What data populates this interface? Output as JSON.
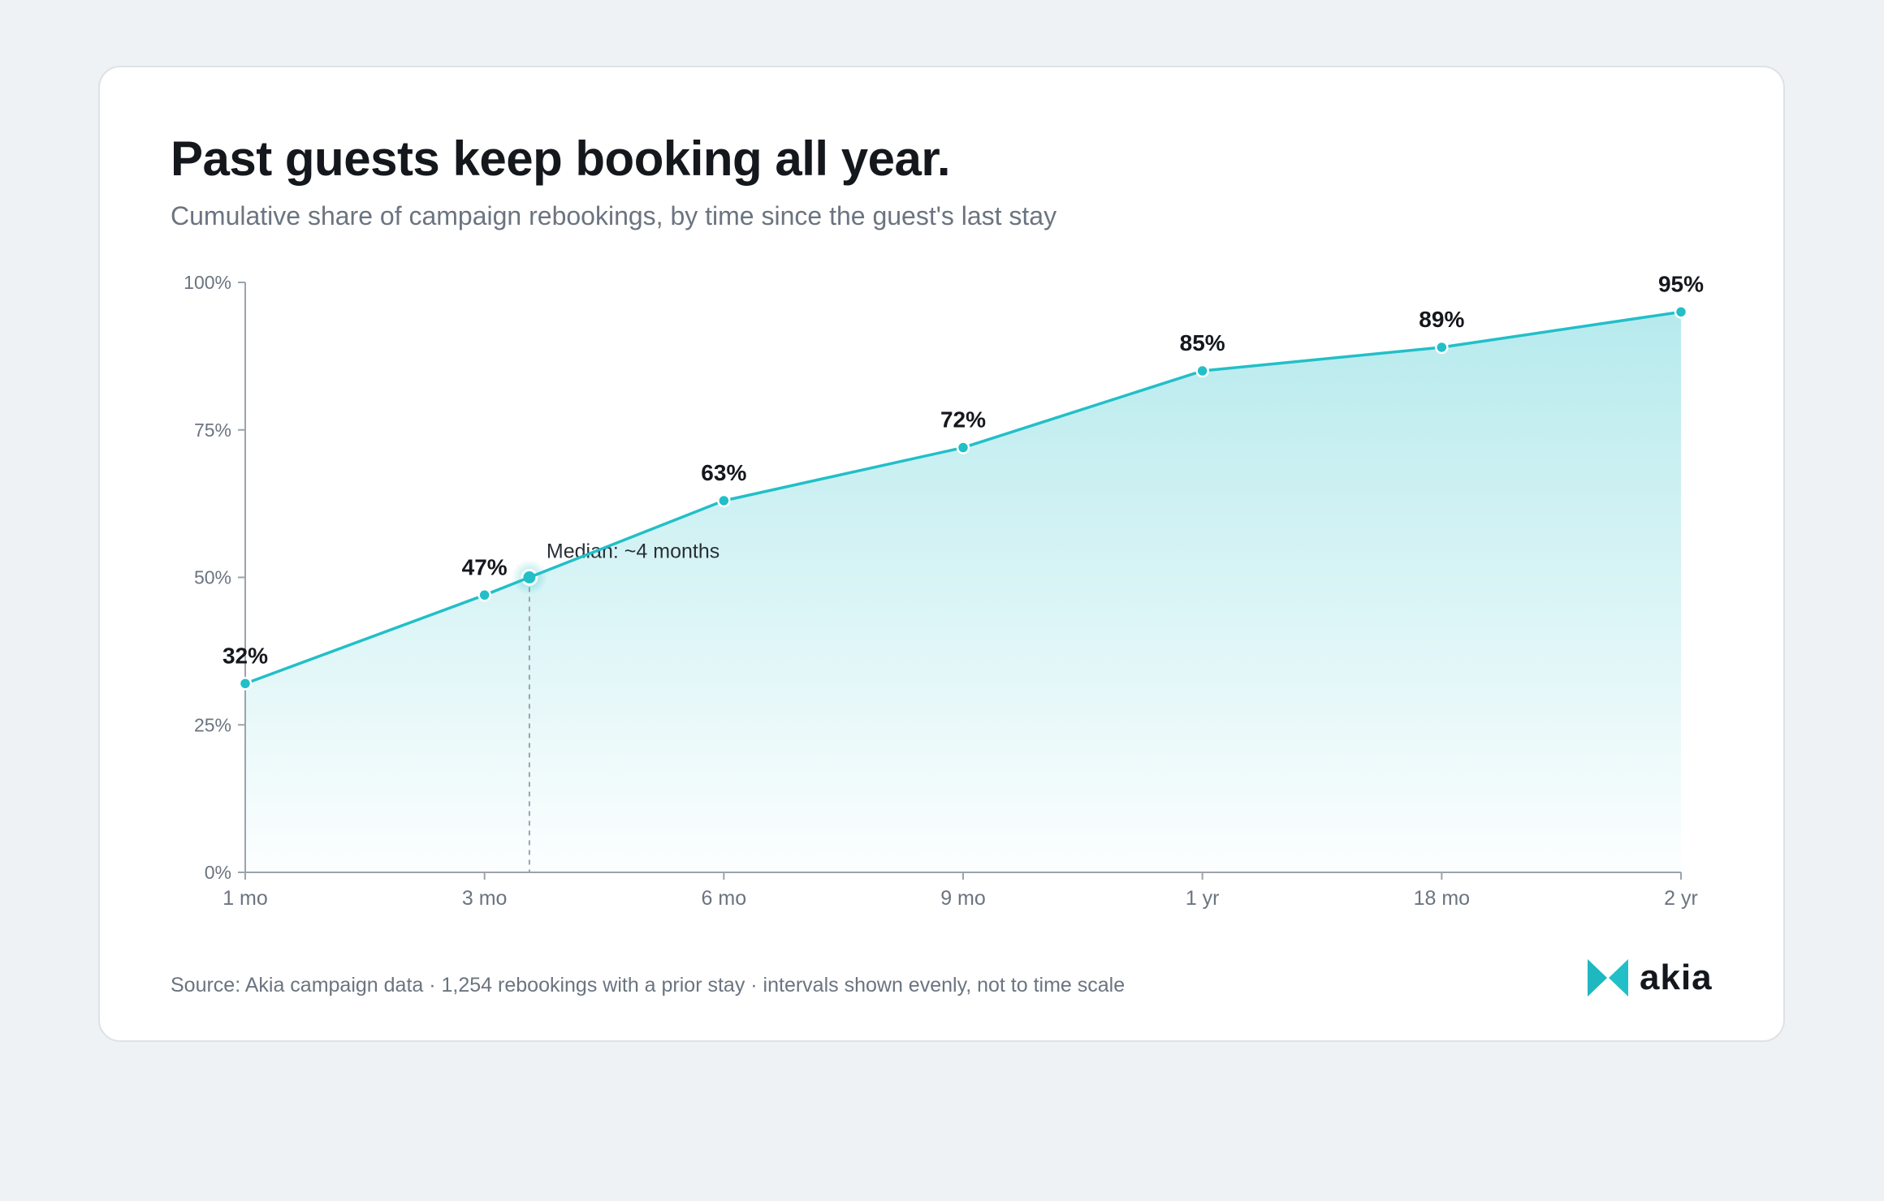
{
  "title": "Past guests keep booking all year.",
  "subtitle": "Cumulative share of campaign rebookings, by time since the guest's last stay",
  "source": "Source: Akia campaign data · 1,254 rebookings with a prior stay · intervals shown evenly, not to time scale",
  "brand": {
    "name": "akia",
    "logo_icon": "akia-logo-icon"
  },
  "colors": {
    "accent": "#22bfc8",
    "fill_top": "#b3e9ec",
    "axis": "#9aa3ad",
    "text": "#14171c",
    "muted": "#6b7480"
  },
  "chart_data": {
    "type": "area",
    "title": "Past guests keep booking all year.",
    "subtitle": "Cumulative share of campaign rebookings, by time since the guest's last stay",
    "categories": [
      "1 mo",
      "3 mo",
      "6 mo",
      "9 mo",
      "1 yr",
      "18 mo",
      "2 yr"
    ],
    "values": [
      32,
      47,
      63,
      72,
      85,
      89,
      95
    ],
    "data_labels": [
      "32%",
      "47%",
      "63%",
      "72%",
      "85%",
      "89%",
      "95%"
    ],
    "y_ticks": [
      "0%",
      "25%",
      "50%",
      "75%",
      "100%"
    ],
    "ylim": [
      0,
      100
    ],
    "grid": false,
    "legend": "none",
    "annotation": {
      "text": "Median: ~4 months",
      "y": 50
    }
  }
}
